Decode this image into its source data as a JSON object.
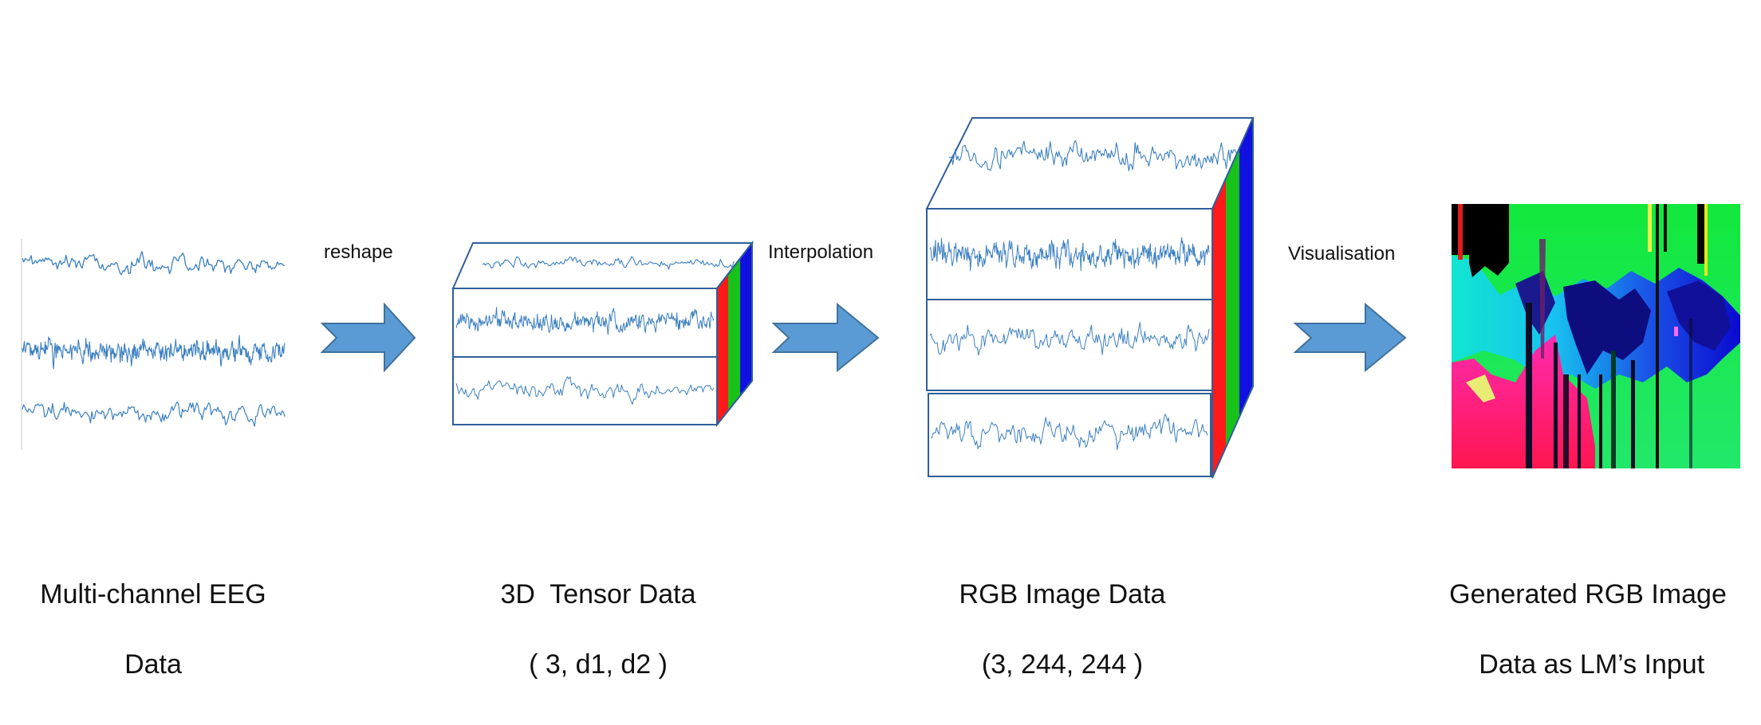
{
  "steps": [
    {
      "caption_line1": "Multi-channel EEG",
      "caption_line2": "Data"
    },
    {
      "caption_line1": "3D  Tensor Data",
      "caption_line2": "( 3, d1, d2 )"
    },
    {
      "caption_line1": "RGB Image Data",
      "caption_line2": "(3, 244, 244 )"
    },
    {
      "caption_line1": "Generated RGB Image",
      "caption_line2": " Data as LM’s Input"
    }
  ],
  "arrows": [
    {
      "label": "reshape"
    },
    {
      "label": "Interpolation"
    },
    {
      "label": "Visualisation"
    }
  ],
  "colors": {
    "signal": "#3b7fc0",
    "frame": "#2f5f9a",
    "arrow_fill": "#5b9bd5",
    "arrow_stroke": "#41719c",
    "channel_red": "#ff1a1a",
    "channel_green": "#19c219",
    "channel_blue": "#1010e0"
  },
  "icons": [
    "eeg-waveform",
    "tensor-cube",
    "rgb-image-cube",
    "process-arrow",
    "generated-rgb-image"
  ]
}
